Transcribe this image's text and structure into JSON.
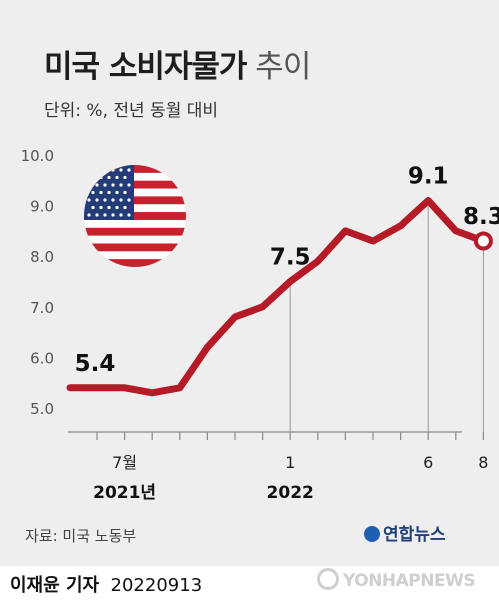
{
  "chart_data": {
    "type": "line",
    "title": "미국 소비자물가",
    "title_suffix": "추이",
    "subtitle": "단위: %, 전년 동월 대비",
    "y_ticks": [
      "10.0",
      "9.0",
      "8.0",
      "7.0",
      "6.0",
      "5.0"
    ],
    "ylim": [
      5.0,
      10.0
    ],
    "x_ticks": [
      {
        "index": 1,
        "label": "7월",
        "year": "2021년"
      },
      {
        "index": 7,
        "label": "1",
        "year": "2022"
      },
      {
        "index": 12,
        "label": "6",
        "year": ""
      },
      {
        "index": 14,
        "label": "8",
        "year": ""
      }
    ],
    "series": [
      {
        "values": [
          5.4,
          5.4,
          5.3,
          5.4,
          6.2,
          6.8,
          7.0,
          7.5,
          7.9,
          8.5,
          8.3,
          8.6,
          9.1,
          8.5,
          8.3
        ]
      }
    ],
    "data_labels": [
      {
        "index": 0,
        "text": "5.4"
      },
      {
        "index": 7,
        "text": "7.5"
      },
      {
        "index": 12,
        "text": "9.1"
      },
      {
        "index": 14,
        "text": "8.3"
      }
    ],
    "grid": false,
    "line_color": "#b51b26"
  },
  "source": "자료: 미국 노동부",
  "logo": "연합뉴스",
  "reporter": {
    "name": "이재윤 기자",
    "date": "20220913"
  },
  "watermark": "YONHAPNEWS"
}
